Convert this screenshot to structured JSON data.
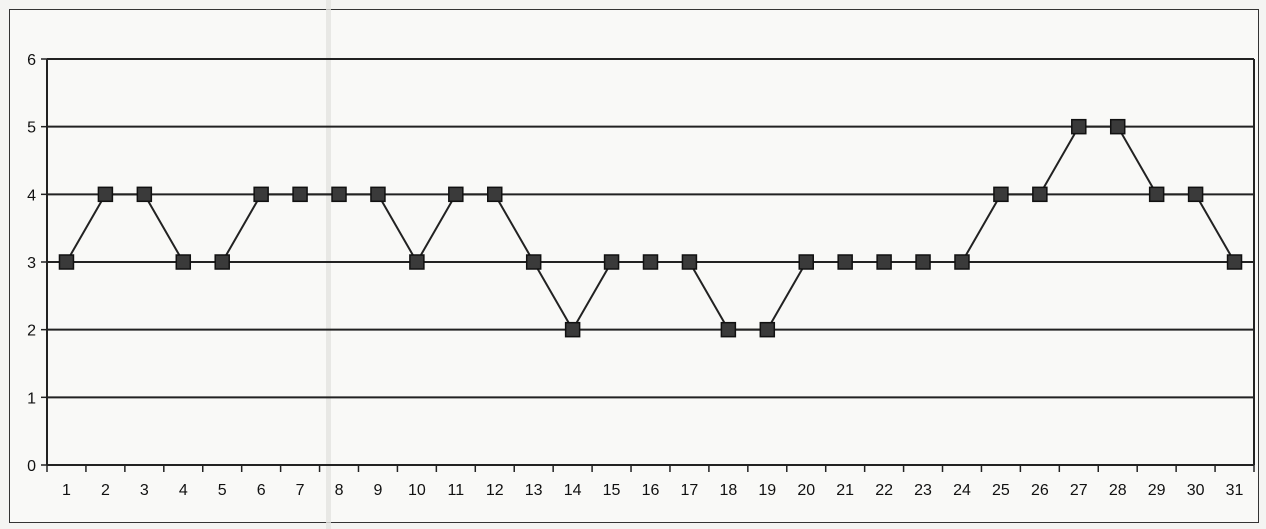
{
  "chart_data": {
    "type": "line",
    "title": "",
    "xlabel": "",
    "ylabel": "",
    "x": [
      1,
      2,
      3,
      4,
      5,
      6,
      7,
      8,
      9,
      10,
      11,
      12,
      13,
      14,
      15,
      16,
      17,
      18,
      19,
      20,
      21,
      22,
      23,
      24,
      25,
      26,
      27,
      28,
      29,
      30,
      31
    ],
    "series": [
      {
        "values": [
          3,
          4,
          4,
          3,
          3,
          4,
          4,
          4,
          4,
          3,
          4,
          4,
          3,
          2,
          3,
          3,
          3,
          2,
          2,
          3,
          3,
          3,
          3,
          3,
          4,
          4,
          5,
          5,
          4,
          4,
          3
        ]
      }
    ],
    "ylim": [
      0,
      6
    ],
    "yticks": [
      0,
      1,
      2,
      3,
      4,
      5,
      6
    ],
    "grid": true,
    "legend": "none",
    "colors": {
      "line": "#222222",
      "marker": "#3a3a3a",
      "grid": "#222222"
    }
  }
}
